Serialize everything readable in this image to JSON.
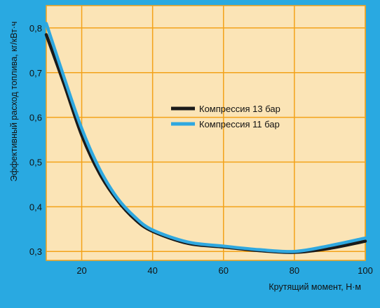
{
  "colors": {
    "frame": "#29a9e1",
    "plot_background": "#fbe4b6",
    "grid": "#f3a219",
    "series_13": "#1a1a1a",
    "series_11": "#2fa8e0"
  },
  "chart_data": {
    "type": "line",
    "xlabel": "Крутящий момент, Н·м",
    "ylabel": "Эффективный расход топлива, кг/кВт·ч",
    "xlim": [
      10,
      100
    ],
    "ylim": [
      0.28,
      0.85
    ],
    "x_ticks": [
      20,
      40,
      60,
      80,
      100
    ],
    "x_tick_labels": [
      "20",
      "40",
      "60",
      "80",
      "100"
    ],
    "y_ticks": [
      0.3,
      0.4,
      0.5,
      0.6,
      0.7,
      0.8
    ],
    "y_tick_labels": [
      "0,3",
      "0,4",
      "0,5",
      "0,6",
      "0,7",
      "0,8"
    ],
    "grid": true,
    "legend_position": "center-right",
    "series": [
      {
        "name": "Компрессия 13 бар",
        "color": "#1a1a1a",
        "x": [
          10,
          15,
          20,
          25,
          30,
          35,
          40,
          50,
          60,
          70,
          80,
          90,
          100
        ],
        "y": [
          0.785,
          0.675,
          0.56,
          0.475,
          0.415,
          0.372,
          0.345,
          0.318,
          0.31,
          0.302,
          0.298,
          0.307,
          0.323
        ]
      },
      {
        "name": "Компрессия 11 бар",
        "color": "#2fa8e0",
        "x": [
          10,
          15,
          20,
          25,
          30,
          35,
          40,
          50,
          60,
          70,
          80,
          90,
          100
        ],
        "y": [
          0.81,
          0.69,
          0.575,
          0.485,
          0.42,
          0.377,
          0.348,
          0.321,
          0.312,
          0.304,
          0.3,
          0.313,
          0.33
        ]
      }
    ]
  }
}
